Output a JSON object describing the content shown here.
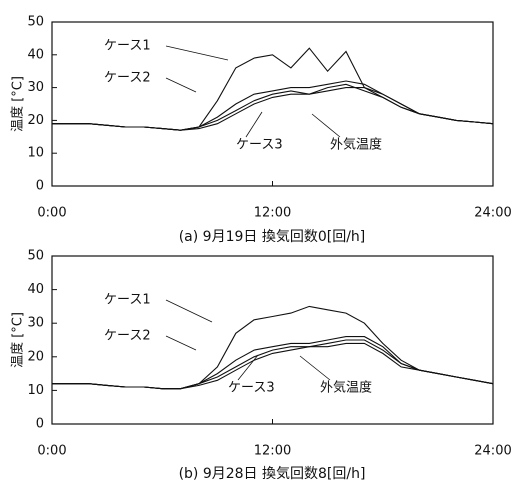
{
  "chart_data": [
    {
      "type": "line",
      "title": "(a) 9月19日 換気回数0[回/h]",
      "y_label": "温度 [°C]",
      "x": [
        0,
        1,
        2,
        3,
        4,
        5,
        6,
        7,
        8,
        9,
        10,
        11,
        12,
        13,
        14,
        15,
        16,
        17,
        18,
        19,
        20,
        21,
        22,
        23,
        24
      ],
      "xlim": [
        0,
        24
      ],
      "ylim": [
        0,
        50
      ],
      "xticks": [
        {
          "value": 0,
          "label": "0:00"
        },
        {
          "value": 12,
          "label": "12:00"
        },
        {
          "value": 24,
          "label": "24:00"
        }
      ],
      "yticks": [
        0,
        10,
        20,
        30,
        40,
        50
      ],
      "series": [
        {
          "name": "ケース1",
          "color": "#111",
          "values": [
            19,
            19,
            19,
            18.5,
            18,
            18,
            17.5,
            17,
            18,
            26,
            36,
            39,
            40,
            36,
            42,
            35,
            41,
            30,
            27,
            24,
            22,
            21,
            20,
            19.5,
            19
          ]
        },
        {
          "name": "ケース2",
          "color": "#111",
          "values": [
            19,
            19,
            19,
            18.5,
            18,
            18,
            17.5,
            17,
            18,
            21,
            25,
            28,
            29,
            30,
            30,
            31,
            32,
            31,
            28,
            25,
            22,
            21,
            20,
            19.5,
            19
          ]
        },
        {
          "name": "ケース3",
          "color": "#111",
          "values": [
            19,
            19,
            19,
            18.5,
            18,
            18,
            17.5,
            17,
            18,
            20,
            23,
            26,
            28,
            29,
            28,
            30,
            31,
            29,
            27,
            24,
            22,
            21,
            20,
            19.5,
            19
          ]
        },
        {
          "name": "外気温度",
          "color": "#111",
          "values": [
            19,
            19,
            19,
            18.5,
            18,
            18,
            17.5,
            17,
            17.5,
            19,
            22,
            25,
            27,
            28,
            28,
            29,
            30,
            30,
            28,
            25,
            22,
            21,
            20,
            19.5,
            19
          ]
        }
      ]
    },
    {
      "type": "line",
      "title": "(b) 9月28日 換気回数8[回/h]",
      "y_label": "温度 [°C]",
      "x": [
        0,
        1,
        2,
        3,
        4,
        5,
        6,
        7,
        8,
        9,
        10,
        11,
        12,
        13,
        14,
        15,
        16,
        17,
        18,
        19,
        20,
        21,
        22,
        23,
        24
      ],
      "xlim": [
        0,
        24
      ],
      "ylim": [
        0,
        50
      ],
      "xticks": [
        {
          "value": 0,
          "label": "0:00"
        },
        {
          "value": 12,
          "label": "12:00"
        },
        {
          "value": 24,
          "label": "24:00"
        }
      ],
      "yticks": [
        0,
        10,
        20,
        30,
        40,
        50
      ],
      "series": [
        {
          "name": "ケース1",
          "color": "#111",
          "values": [
            12,
            12,
            12,
            11.5,
            11,
            11,
            10.5,
            10.5,
            12,
            17,
            27,
            31,
            32,
            33,
            35,
            34,
            33,
            30,
            24,
            19,
            16,
            15,
            14,
            13,
            12
          ]
        },
        {
          "name": "ケース2",
          "color": "#111",
          "values": [
            12,
            12,
            12,
            11.5,
            11,
            11,
            10.5,
            10.5,
            12,
            15,
            19,
            22,
            23,
            24,
            24,
            25,
            26,
            26,
            23,
            18,
            16,
            15,
            14,
            13,
            12
          ]
        },
        {
          "name": "ケース3",
          "color": "#111",
          "values": [
            12,
            12,
            12,
            11.5,
            11,
            11,
            10.5,
            10.5,
            12,
            14,
            17,
            20,
            22,
            23,
            23,
            24,
            25,
            25,
            22,
            18,
            16,
            15,
            14,
            13,
            12
          ]
        },
        {
          "name": "外気温度",
          "color": "#111",
          "values": [
            12,
            12,
            12,
            11.5,
            11,
            11,
            10.5,
            10.5,
            11.5,
            13,
            16,
            19,
            21,
            22,
            23,
            23,
            24,
            24,
            21,
            17,
            16,
            15,
            14,
            13,
            12
          ]
        }
      ]
    }
  ]
}
